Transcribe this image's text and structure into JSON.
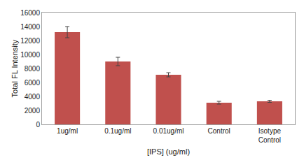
{
  "chart_data": {
    "type": "bar",
    "categories": [
      "1ug/ml",
      "0.1ug/ml",
      "0.01ug/ml",
      "Control",
      "Isotype\nControl"
    ],
    "values": [
      13200,
      9000,
      7100,
      3100,
      3300
    ],
    "errors": [
      800,
      600,
      300,
      200,
      150
    ],
    "color": "#c0504d",
    "ylabel": "Total FL Intensity",
    "xlabel": "[IPS] (ug/ml)",
    "ylim": [
      0,
      16000
    ],
    "yticks": [
      0,
      2000,
      4000,
      6000,
      8000,
      10000,
      12000,
      14000,
      16000
    ],
    "grid": false
  }
}
